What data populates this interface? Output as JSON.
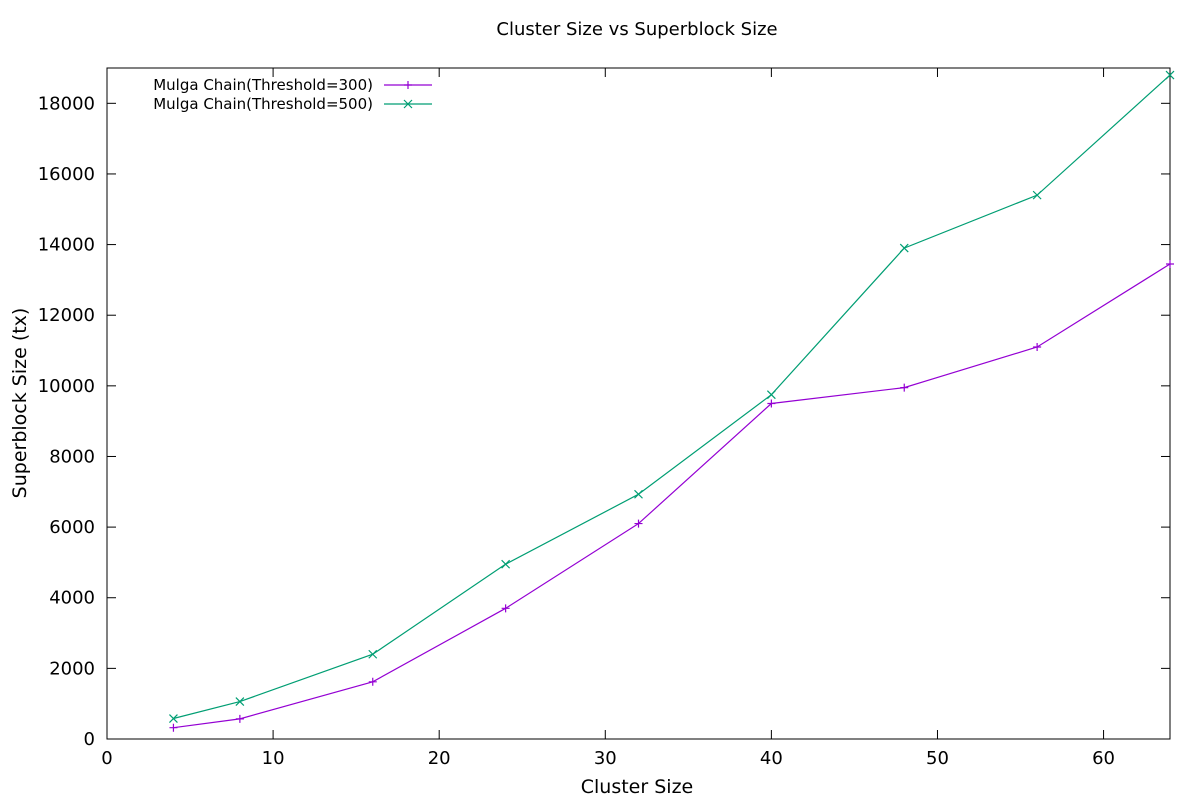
{
  "chart_data": {
    "type": "line",
    "title": "Cluster Size vs Superblock Size",
    "xlabel": "Cluster Size",
    "ylabel": "Superblock Size (tx)",
    "xlim": [
      0,
      64
    ],
    "ylim": [
      0,
      19000
    ],
    "xticks": [
      0,
      10,
      20,
      30,
      40,
      50,
      60
    ],
    "yticks": [
      0,
      2000,
      4000,
      6000,
      8000,
      10000,
      12000,
      14000,
      16000,
      18000
    ],
    "grid": false,
    "legend_position": "top-left",
    "x": [
      4,
      8,
      16,
      24,
      32,
      40,
      48,
      56,
      64
    ],
    "series": [
      {
        "name": "Mulga Chain(Threshold=300)",
        "color": "#9400d3",
        "marker": "plus",
        "values": [
          320,
          570,
          1620,
          3700,
          6100,
          9500,
          9950,
          11100,
          13450
        ]
      },
      {
        "name": "Mulga Chain(Threshold=500)",
        "color": "#009e73",
        "marker": "cross",
        "values": [
          580,
          1060,
          2400,
          4950,
          6930,
          9750,
          13900,
          15400,
          18800
        ]
      }
    ]
  }
}
